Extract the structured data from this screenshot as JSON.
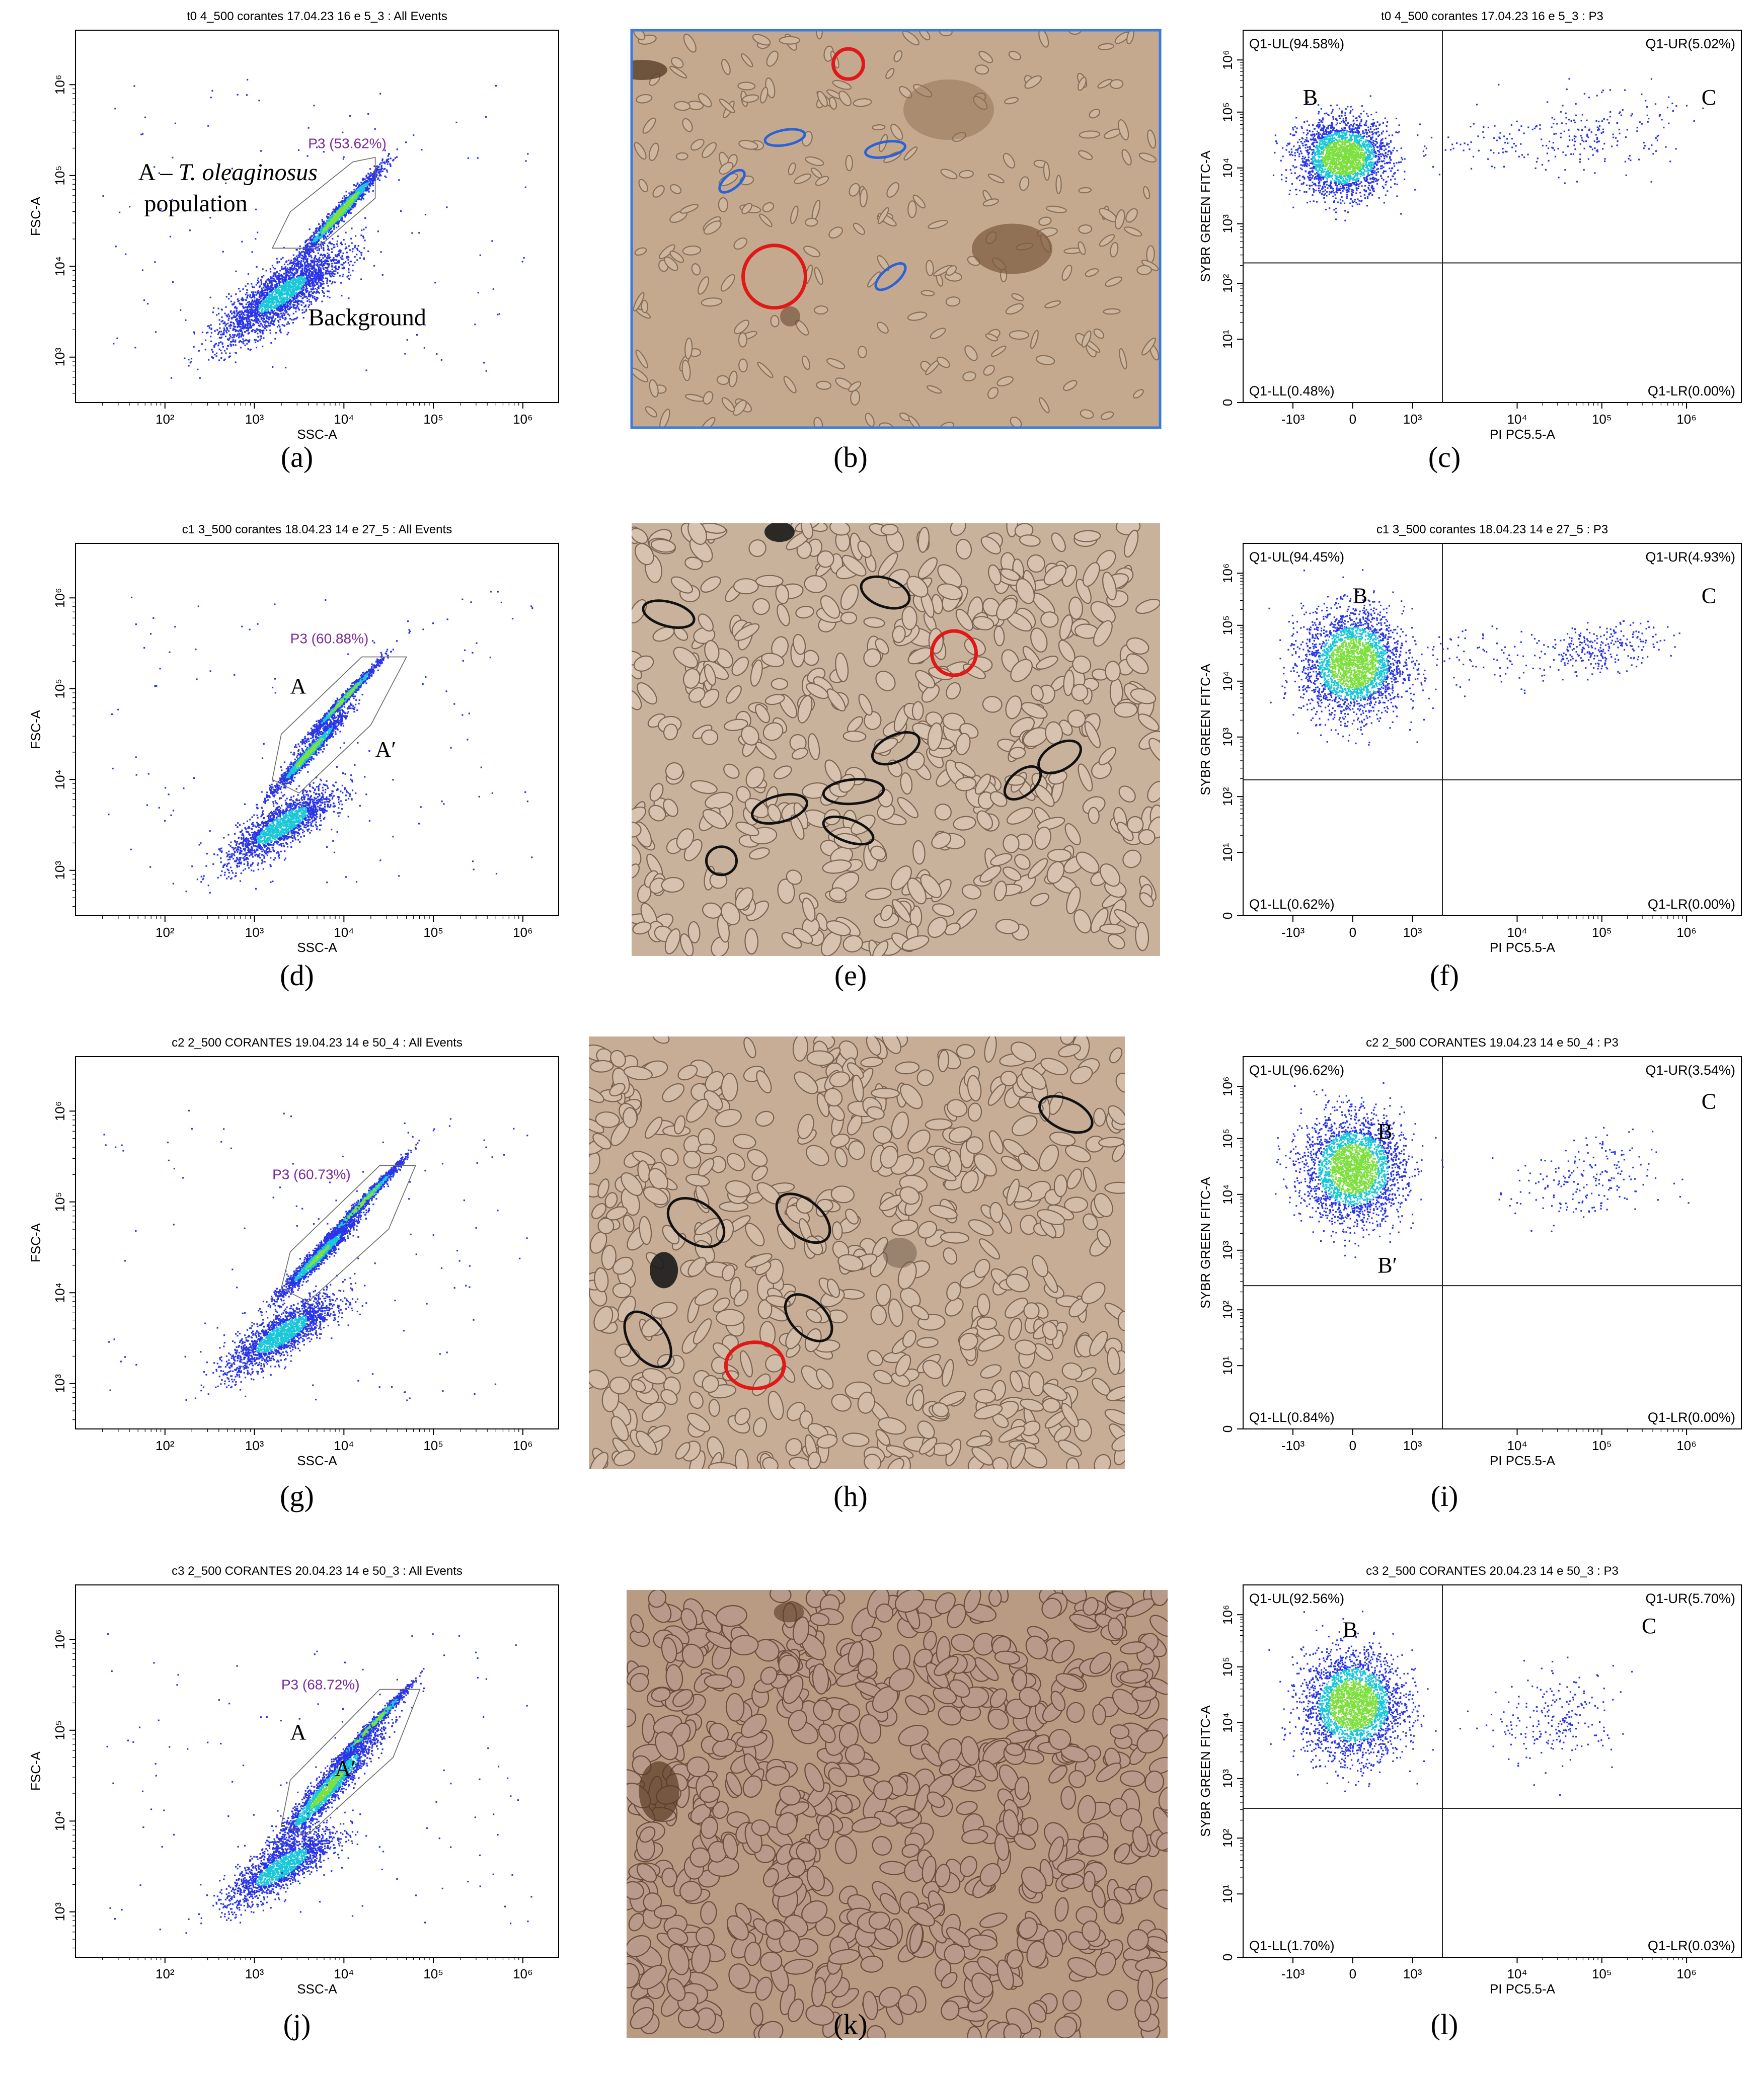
{
  "captions": [
    "(a)",
    "(b)",
    "(c)",
    "(d)",
    "(e)",
    "(f)",
    "(g)",
    "(h)",
    "(i)",
    "(j)",
    "(k)",
    "(l)"
  ],
  "caption_letters": [
    "a",
    "b",
    "c",
    "d",
    "e",
    "f",
    "g",
    "h",
    "i",
    "j",
    "k",
    "l"
  ],
  "colors": {
    "points_low": "#2a34e8",
    "points_mid": "#19c8d8",
    "points_high": "#7ee040",
    "gate_label": "#7a2a9a",
    "axis": "#000000",
    "quad_line": "#222222",
    "micro_bg_1": "#c4a98f",
    "micro_bg_2": "#c9b29b",
    "micro_bg_3": "#c7ad96",
    "micro_bg_4": "#b99a82",
    "circle_red": "#e01818",
    "circle_blue": "#2a62d8",
    "circle_black": "#111111",
    "frame_blue": "#3a7ae0"
  },
  "chart_data": [
    {
      "id": "a",
      "type": "scatter",
      "title": "t0 4_500 corantes 17.04.23 16 e 5_3 : All Events",
      "xlabel": "SSC-A",
      "ylabel": "FSC-A",
      "x_ticks": [
        "10²",
        "10³",
        "10⁴",
        "10⁵",
        "10⁶"
      ],
      "y_ticks": [
        "10³",
        "10⁴",
        "10⁵",
        "10⁶"
      ],
      "xlim_log10": [
        1.0,
        6.4
      ],
      "ylim_log10": [
        2.5,
        6.6
      ],
      "scale": "log",
      "gate": {
        "name": "P3 (53.62%)",
        "percent": 53.62
      },
      "clusters": [
        {
          "label": "A – T. oleaginosus population",
          "x_log10": 3.9,
          "y_log10": 4.55
        },
        {
          "label": "Background",
          "x_log10": 3.3,
          "y_log10": 3.6
        }
      ]
    },
    {
      "id": "c",
      "type": "scatter",
      "title": "t0 4_500 corantes 17.04.23 16 e 5_3 : P3",
      "xlabel": "PI PC5.5-A",
      "ylabel": "SYBR GREEN FITC-A",
      "x_ticks": [
        "-10³",
        "0",
        "10³",
        "10⁴",
        "10⁵",
        "10⁶"
      ],
      "y_ticks": [
        "0",
        "10¹",
        "10²",
        "10³",
        "10⁴",
        "10⁵",
        "10⁶"
      ],
      "quadrants": {
        "UL": "Q1-UL(94.58%)",
        "UR": "Q1-UR(5.02%)",
        "LL": "Q1-LL(0.48%)",
        "LR": "Q1-LR(0.00%)"
      },
      "quadrant_values": {
        "UL": 94.58,
        "UR": 5.02,
        "LL": 0.48,
        "LR": 0.0
      },
      "clusters": [
        {
          "label": "B"
        },
        {
          "label": "C"
        }
      ]
    },
    {
      "id": "d",
      "type": "scatter",
      "title": "c1 3_500 corantes 18.04.23 14 e 27_5 : All Events",
      "xlabel": "SSC-A",
      "ylabel": "FSC-A",
      "x_ticks": [
        "10²",
        "10³",
        "10⁴",
        "10⁵",
        "10⁶"
      ],
      "y_ticks": [
        "10³",
        "10⁴",
        "10⁵",
        "10⁶"
      ],
      "gate": {
        "name": "P3 (60.88%)",
        "percent": 60.88
      },
      "clusters": [
        {
          "label": "A"
        },
        {
          "label": "A′"
        }
      ]
    },
    {
      "id": "f",
      "type": "scatter",
      "title": "c1 3_500 corantes 18.04.23 14 e 27_5 : P3",
      "xlabel": "PI PC5.5-A",
      "ylabel": "SYBR GREEN FITC-A",
      "x_ticks": [
        "-10³",
        "0",
        "10³",
        "10⁴",
        "10⁵",
        "10⁶"
      ],
      "y_ticks": [
        "0",
        "10¹",
        "10²",
        "10³",
        "10⁴",
        "10⁵",
        "10⁶"
      ],
      "quadrants": {
        "UL": "Q1-UL(94.45%)",
        "UR": "Q1-UR(4.93%)",
        "LL": "Q1-LL(0.62%)",
        "LR": "Q1-LR(0.00%)"
      },
      "quadrant_values": {
        "UL": 94.45,
        "UR": 4.93,
        "LL": 0.62,
        "LR": 0.0
      },
      "clusters": [
        {
          "label": "B"
        },
        {
          "label": "C"
        }
      ]
    },
    {
      "id": "g",
      "type": "scatter",
      "title": "c2 2_500 CORANTES 19.04.23 14 e 50_4 : All Events",
      "xlabel": "SSC-A",
      "ylabel": "FSC-A",
      "x_ticks": [
        "10²",
        "10³",
        "10⁴",
        "10⁵",
        "10⁶"
      ],
      "y_ticks": [
        "10³",
        "10⁴",
        "10⁵",
        "10⁶"
      ],
      "gate": {
        "name": "P3 (60.73%)",
        "percent": 60.73
      },
      "clusters": []
    },
    {
      "id": "i",
      "type": "scatter",
      "title": "c2 2_500 CORANTES 19.04.23 14 e 50_4 : P3",
      "xlabel": "PI PC5.5-A",
      "ylabel": "SYBR GREEN FITC-A",
      "x_ticks": [
        "-10³",
        "0",
        "10³",
        "10⁴",
        "10⁵",
        "10⁶"
      ],
      "y_ticks": [
        "0",
        "10¹",
        "10²",
        "10³",
        "10⁴",
        "10⁵",
        "10⁶"
      ],
      "quadrants": {
        "UL": "Q1-UL(96.62%)",
        "UR": "Q1-UR(3.54%)",
        "LL": "Q1-LL(0.84%)",
        "LR": "Q1-LR(0.00%)"
      },
      "quadrant_values": {
        "UL": 96.62,
        "UR": 3.54,
        "LL": 0.84,
        "LR": 0.0
      },
      "clusters": [
        {
          "label": "B"
        },
        {
          "label": "B′"
        },
        {
          "label": "C"
        }
      ]
    },
    {
      "id": "j",
      "type": "scatter",
      "title": "c3 2_500 CORANTES 20.04.23 14 e 50_3 : All Events",
      "xlabel": "SSC-A",
      "ylabel": "FSC-A",
      "x_ticks": [
        "10²",
        "10³",
        "10⁴",
        "10⁵",
        "10⁶"
      ],
      "y_ticks": [
        "10³",
        "10⁴",
        "10⁵",
        "10⁶"
      ],
      "gate": {
        "name": "P3 (68.72%)",
        "percent": 68.72
      },
      "clusters": [
        {
          "label": "A"
        },
        {
          "label": "A′"
        }
      ]
    },
    {
      "id": "l",
      "type": "scatter",
      "title": "c3 2_500 CORANTES 20.04.23 14 e 50_3 : P3",
      "xlabel": "PI PC5.5-A",
      "ylabel": "SYBR GREEN FITC-A",
      "x_ticks": [
        "-10³",
        "0",
        "10³",
        "10⁴",
        "10⁵",
        "10⁶"
      ],
      "y_ticks": [
        "0",
        "10¹",
        "10²",
        "10³",
        "10⁴",
        "10⁵",
        "10⁶"
      ],
      "quadrants": {
        "UL": "Q1-UL(92.56%)",
        "UR": "Q1-UR(5.70%)",
        "LL": "Q1-LL(1.70%)",
        "LR": "Q1-LR(0.03%)"
      },
      "quadrant_values": {
        "UL": 92.56,
        "UR": 5.7,
        "LL": 1.7,
        "LR": 0.03
      },
      "clusters": [
        {
          "label": "B"
        },
        {
          "label": "C"
        }
      ]
    }
  ],
  "micrographs": [
    {
      "id": "b",
      "circles_red": 2,
      "circles_blue": 4,
      "circles_black": 0
    },
    {
      "id": "e",
      "circles_red": 1,
      "circles_blue": 0,
      "circles_black": 10
    },
    {
      "id": "h",
      "circles_red": 1,
      "circles_blue": 0,
      "circles_black": 6
    },
    {
      "id": "k",
      "circles_red": 0,
      "circles_blue": 0,
      "circles_black": 0
    }
  ]
}
